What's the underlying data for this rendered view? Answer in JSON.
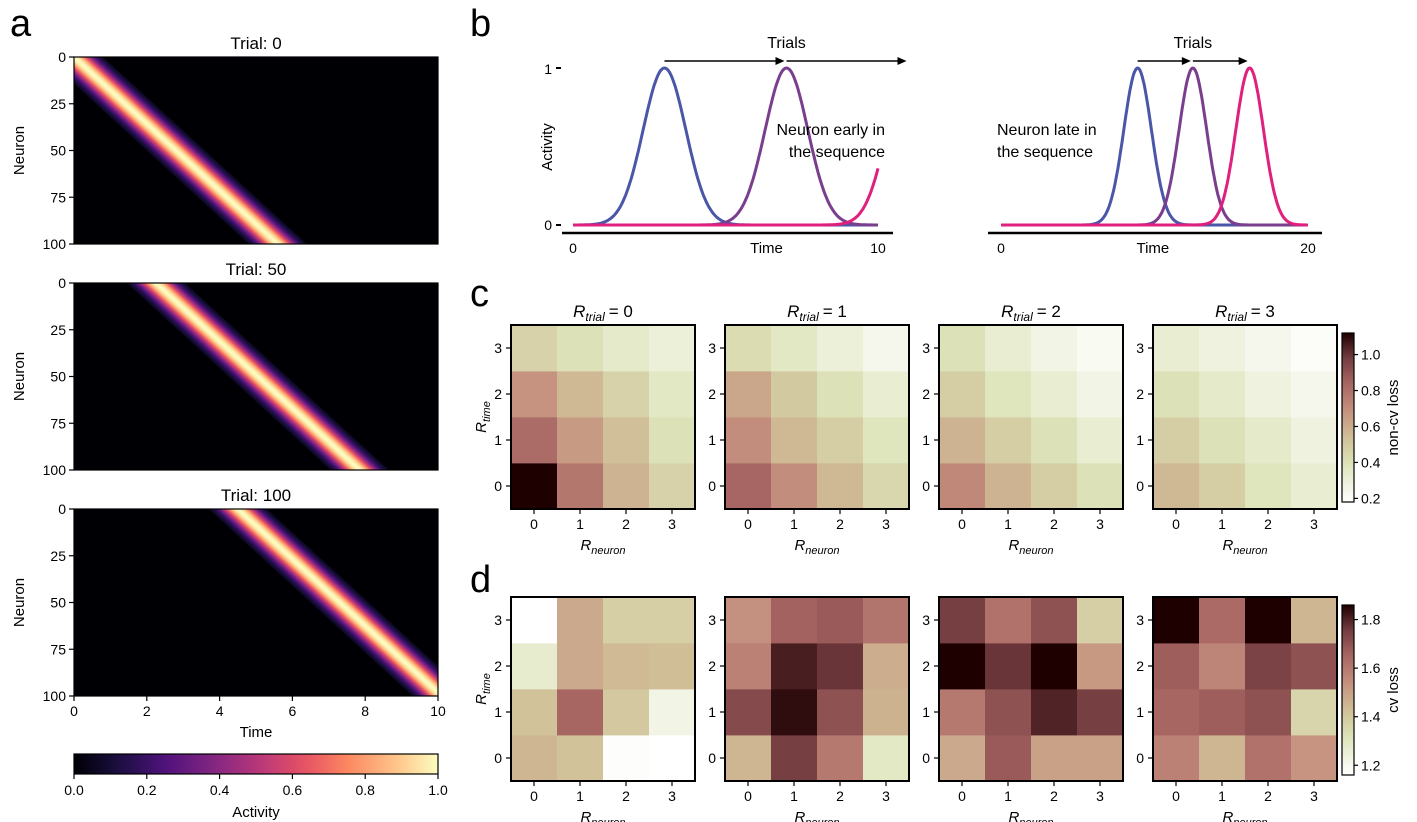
{
  "panel_labels": [
    "a",
    "b",
    "c",
    "d"
  ],
  "chart_data": [
    {
      "id": "a",
      "type": "heatmap",
      "description_units": "time vs neuron",
      "subplots": [
        {
          "title": "Trial: 0",
          "seq_start": 0.0,
          "seq_end": 5.6
        },
        {
          "title": "Trial: 50",
          "seq_start": 2.25,
          "seq_end": 7.85
        },
        {
          "title": "Trial: 100",
          "seq_start": 4.5,
          "seq_end": 10.1
        }
      ],
      "band_width": 0.8,
      "xlabel": "Time",
      "ylabel": "Neuron",
      "xlim": [
        0,
        10
      ],
      "ylim": [
        0,
        100
      ],
      "xticks": [
        "0",
        "2",
        "4",
        "6",
        "8",
        "10"
      ],
      "yticks": [
        "0",
        "25",
        "50",
        "75",
        "100"
      ],
      "colorbar": {
        "label": "Activity",
        "ticks": [
          "0.0",
          "0.2",
          "0.4",
          "0.6",
          "0.8",
          "1.0"
        ],
        "colormap": "magma"
      }
    },
    {
      "id": "b",
      "type": "line",
      "subplots": [
        {
          "annotation": [
            "Neuron early in",
            "the sequence"
          ],
          "xlim": [
            0,
            10
          ],
          "xticks": [
            "0",
            "10"
          ],
          "peaks": [
            3,
            7,
            11
          ],
          "sigma": 0.7
        },
        {
          "annotation": [
            "Neuron late in",
            "the sequence"
          ],
          "xlim": [
            0,
            20
          ],
          "xticks": [
            "0",
            "20"
          ],
          "peaks": [
            8.9,
            12.5,
            16.2
          ],
          "sigma": 0.9
        }
      ],
      "series_colors": [
        "#4a56a8",
        "#7a3e8e",
        "#e0207e"
      ],
      "arrow_label": "Trials",
      "xlabel": "Time",
      "ylabel": "Activity",
      "yticks": [
        "0",
        "1"
      ]
    },
    {
      "id": "c",
      "type": "heatmap",
      "xlabel_sym": "R",
      "xlabel_sub": "neuron",
      "ylabel_sym": "R",
      "ylabel_sub": "time",
      "ticks": [
        "0",
        "1",
        "2",
        "3"
      ],
      "subplot_titles": [
        {
          "sym": "R",
          "sub": "trial",
          "val": "= 0"
        },
        {
          "sym": "R",
          "sub": "trial",
          "val": "= 1"
        },
        {
          "sym": "R",
          "sub": "trial",
          "val": "= 2"
        },
        {
          "sym": "R",
          "sub": "trial",
          "val": "= 3"
        }
      ],
      "note": "values[panel][r_time][r_neuron]",
      "values": [
        [
          [
            1.12,
            0.78,
            0.58,
            0.46
          ],
          [
            0.82,
            0.66,
            0.54,
            0.4
          ],
          [
            0.68,
            0.56,
            0.46,
            0.36
          ],
          [
            0.46,
            0.4,
            0.34,
            0.3
          ]
        ],
        [
          [
            0.84,
            0.7,
            0.56,
            0.44
          ],
          [
            0.7,
            0.56,
            0.48,
            0.38
          ],
          [
            0.62,
            0.5,
            0.4,
            0.32
          ],
          [
            0.42,
            0.36,
            0.3,
            0.24
          ]
        ],
        [
          [
            0.72,
            0.58,
            0.48,
            0.4
          ],
          [
            0.58,
            0.48,
            0.4,
            0.32
          ],
          [
            0.48,
            0.38,
            0.32,
            0.26
          ],
          [
            0.4,
            0.32,
            0.26,
            0.22
          ]
        ],
        [
          [
            0.56,
            0.48,
            0.38,
            0.32
          ],
          [
            0.48,
            0.4,
            0.34,
            0.28
          ],
          [
            0.4,
            0.34,
            0.28,
            0.24
          ],
          [
            0.32,
            0.28,
            0.24,
            0.2
          ]
        ]
      ],
      "colorbar": {
        "label": "non-cv loss",
        "vmin": 0.18,
        "vmax": 1.12,
        "ticks": [
          0.2,
          0.4,
          0.6,
          0.8,
          1.0
        ],
        "tick_labels": [
          "0.2",
          "0.4",
          "0.6",
          "0.8",
          "1.0"
        ]
      }
    },
    {
      "id": "d",
      "type": "heatmap",
      "xlabel_sym": "R",
      "xlabel_sub": "neuron",
      "ylabel_sym": "R",
      "ylabel_sub": "time",
      "ticks": [
        "0",
        "1",
        "2",
        "3"
      ],
      "note": "values[panel][r_time][r_neuron]",
      "values": [
        [
          [
            1.45,
            1.42,
            1.17,
            1.16
          ],
          [
            1.42,
            1.65,
            1.4,
            1.22
          ],
          [
            1.27,
            1.48,
            1.44,
            1.43
          ],
          [
            1.16,
            1.48,
            1.38,
            1.38
          ]
        ],
        [
          [
            1.45,
            1.75,
            1.6,
            1.29
          ],
          [
            1.72,
            1.84,
            1.7,
            1.46
          ],
          [
            1.58,
            1.81,
            1.77,
            1.47
          ],
          [
            1.54,
            1.66,
            1.68,
            1.61
          ]
        ],
        [
          [
            1.48,
            1.68,
            1.5,
            1.5
          ],
          [
            1.6,
            1.7,
            1.8,
            1.75
          ],
          [
            1.9,
            1.77,
            1.86,
            1.52
          ],
          [
            1.75,
            1.62,
            1.7,
            1.38
          ]
        ],
        [
          [
            1.58,
            1.45,
            1.62,
            1.53
          ],
          [
            1.65,
            1.67,
            1.7,
            1.36
          ],
          [
            1.67,
            1.57,
            1.74,
            1.7
          ],
          [
            1.87,
            1.64,
            1.98,
            1.45
          ]
        ]
      ],
      "colorbar": {
        "label": "cv loss",
        "vmin": 1.16,
        "vmax": 1.86,
        "ticks": [
          1.2,
          1.4,
          1.6,
          1.8
        ],
        "tick_labels": [
          "1.2",
          "1.4",
          "1.6",
          "1.8"
        ]
      }
    }
  ]
}
